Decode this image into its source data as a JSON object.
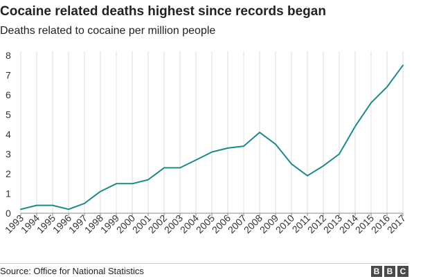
{
  "chart_data": {
    "type": "line",
    "title": "Cocaine related deaths highest since records began",
    "subtitle": "Deaths related to cocaine per million people",
    "x": [
      "1993",
      "1994",
      "1995",
      "1996",
      "1997",
      "1998",
      "1999",
      "2000",
      "2001",
      "2002",
      "2003",
      "2004",
      "2005",
      "2006",
      "2007",
      "2008",
      "2009",
      "2010",
      "2011",
      "2012",
      "2013",
      "2014",
      "2015",
      "2016",
      "2017"
    ],
    "series": [
      {
        "values": [
          0.2,
          0.4,
          0.4,
          0.2,
          0.5,
          1.1,
          1.5,
          1.5,
          1.7,
          2.3,
          2.3,
          2.7,
          3.1,
          3.3,
          3.4,
          4.1,
          3.5,
          2.5,
          1.9,
          2.4,
          3.0,
          4.4,
          5.6,
          6.4,
          7.5
        ]
      }
    ],
    "yticks": [
      0,
      1,
      2,
      3,
      4,
      5,
      6,
      7,
      8
    ],
    "ylim": [
      0,
      8
    ],
    "grid": "vertical",
    "line_color": "#1b8a8a"
  },
  "footer": {
    "source": "Source: Office for National Statistics",
    "logo": [
      "B",
      "B",
      "C"
    ]
  }
}
